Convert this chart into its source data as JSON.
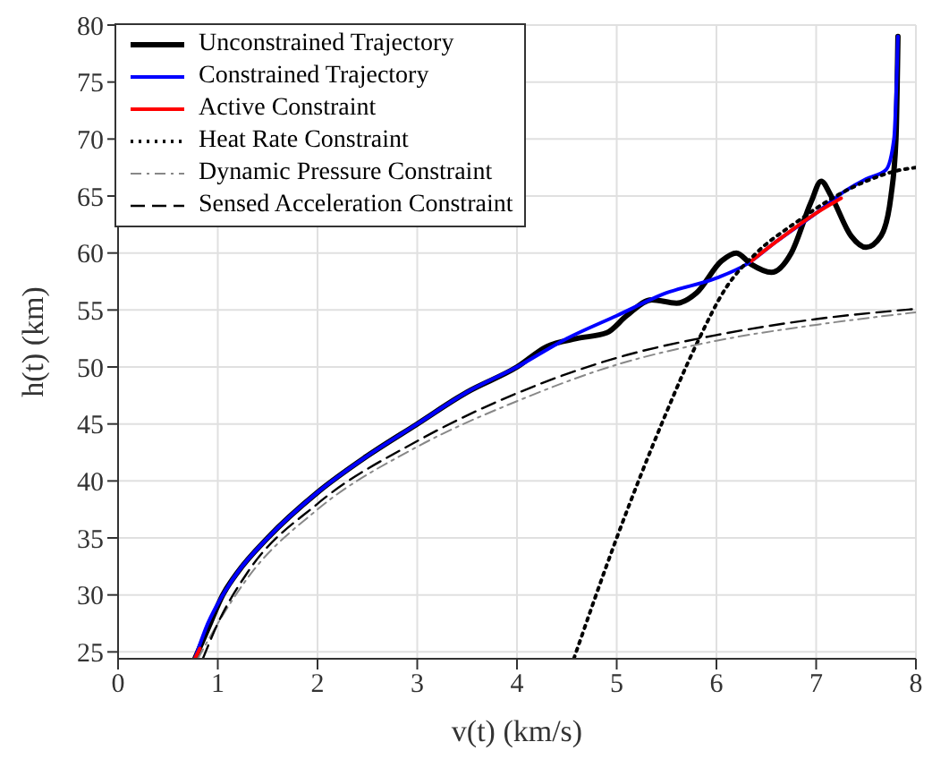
{
  "chart_data": {
    "type": "line",
    "xlabel": "v(t) (km/s)",
    "ylabel": "h(t) (km)",
    "xlim": [
      0,
      8
    ],
    "xticks": [
      0,
      1,
      2,
      3,
      4,
      5,
      6,
      7,
      8
    ],
    "ylim": [
      24.4,
      80
    ],
    "yticks": [
      25,
      30,
      35,
      40,
      45,
      50,
      55,
      60,
      65,
      70,
      75,
      80
    ],
    "grid": true,
    "legend": "top left",
    "marker": "none",
    "series": [
      {
        "name": "Unconstrained Trajectory",
        "color": "#000000",
        "line_style": "solid",
        "x": [
          0.77,
          0.9,
          1.05,
          1.2,
          1.5,
          2,
          2.5,
          3,
          3.5,
          4,
          4.3,
          4.6,
          4.9,
          5.1,
          5.35,
          5.6,
          5.8,
          6.05,
          6.2,
          6.35,
          6.55,
          6.75,
          6.95,
          7.05,
          7.15,
          7.35,
          7.5,
          7.65,
          7.75,
          7.8,
          7.82
        ],
        "values": [
          24.4,
          27,
          30,
          32,
          35,
          39,
          42.2,
          45,
          47.8,
          50,
          51.8,
          52.5,
          53,
          54.5,
          55.9,
          55.6,
          56.5,
          59.3,
          60,
          59,
          58.3,
          60,
          64.5,
          66.3,
          65,
          61.5,
          60.5,
          61.5,
          65,
          70,
          79
        ]
      },
      {
        "name": "Constrained Trajectory",
        "color": "#0000ff",
        "line_style": "solid",
        "x": [
          0.77,
          0.9,
          1.05,
          1.2,
          1.5,
          2,
          2.5,
          3,
          3.5,
          4,
          4.5,
          5,
          5.5,
          6,
          6.3,
          6.6,
          7,
          7.3,
          7.5,
          7.7,
          7.78,
          7.82
        ],
        "values": [
          24.4,
          27.5,
          30,
          32,
          35,
          39,
          42.2,
          45,
          47.8,
          50,
          52.5,
          54.5,
          56.5,
          57.8,
          59,
          61,
          63.5,
          65.5,
          66.5,
          67.3,
          70,
          79
        ]
      },
      {
        "name": "Active Constraint",
        "color": "#ff0000",
        "line_style": "solid",
        "x": [
          0.77,
          0.82,
          6.3,
          6.35,
          6.6,
          7.0,
          7.25
        ],
        "values": [
          24.4,
          25.3,
          null,
          59.3,
          61,
          63.5,
          64.8
        ]
      },
      {
        "name": "Heat Rate Constraint",
        "color": "#000000",
        "line_style": "dotted",
        "x": [
          4.57,
          5,
          5.45,
          5.8,
          6.1,
          6.4,
          6.8,
          7.2,
          7.5,
          7.8,
          8
        ],
        "values": [
          24.4,
          35,
          45,
          52,
          57,
          60,
          62.7,
          65,
          66.3,
          67.2,
          67.5
        ]
      },
      {
        "name": "Dynamic Pressure Constraint",
        "color": "#888888",
        "line_style": "dashdot",
        "x": [
          0.8,
          1.0,
          1.3,
          2,
          3,
          4,
          5,
          6,
          7,
          8
        ],
        "values": [
          24.4,
          27.5,
          31.5,
          37.5,
          43,
          47,
          50.2,
          52.3,
          53.7,
          54.8
        ]
      },
      {
        "name": "Sensed Acceleration Constraint",
        "color": "#000000",
        "line_style": "dashed",
        "x": [
          0.85,
          1.0,
          1.3,
          2,
          3,
          4,
          5,
          6,
          7,
          8
        ],
        "values": [
          24.4,
          27.5,
          32,
          38,
          43.5,
          47.7,
          50.8,
          52.8,
          54.2,
          55.1
        ]
      }
    ]
  }
}
